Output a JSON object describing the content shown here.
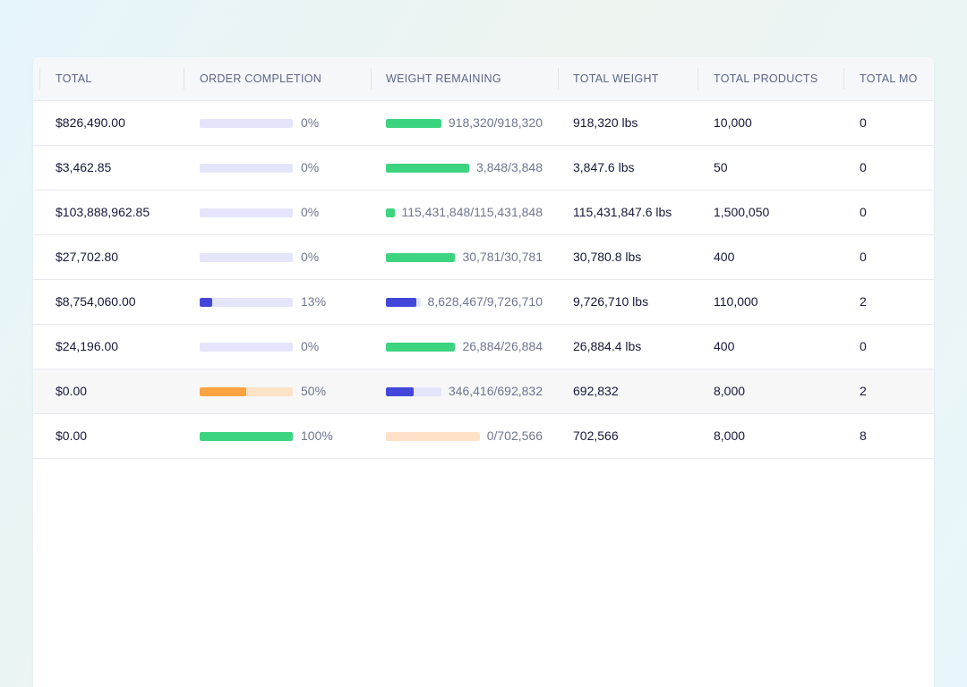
{
  "table": {
    "columns": [
      "TOTAL",
      "ORDER COMPLETION",
      "WEIGHT REMAINING",
      "TOTAL WEIGHT",
      "TOTAL PRODUCTS",
      "TOTAL MO"
    ],
    "rows": [
      {
        "total": "$826,490.00",
        "order_pct": "0%",
        "order_fraction": 0,
        "order_color": "#e4e5fb",
        "weight_text": "918,320/918,320",
        "weight_fraction": 1.0,
        "weight_color": "#3dd47f",
        "weight_track": "transparent",
        "total_weight": "918,320 lbs",
        "total_products": "10,000",
        "total_mo": "0"
      },
      {
        "total": "$3,462.85",
        "order_pct": "0%",
        "order_fraction": 0,
        "order_color": "#e4e5fb",
        "weight_text": "3,848/3,848",
        "weight_fraction": 1.0,
        "weight_color": "#3dd47f",
        "weight_track": "transparent",
        "total_weight": "3,847.6 lbs",
        "total_products": "50",
        "total_mo": "0"
      },
      {
        "total": "$103,888,962.85",
        "order_pct": "0%",
        "order_fraction": 0,
        "order_color": "#e4e5fb",
        "weight_text": "115,431,848/115,431,848",
        "weight_fraction": 1.0,
        "weight_color": "#3dd47f",
        "weight_track": "transparent",
        "total_weight": "115,431,847.6 lbs",
        "total_products": "1,500,050",
        "total_mo": "0"
      },
      {
        "total": "$27,702.80",
        "order_pct": "0%",
        "order_fraction": 0,
        "order_color": "#e4e5fb",
        "weight_text": "30,781/30,781",
        "weight_fraction": 1.0,
        "weight_color": "#3dd47f",
        "weight_track": "transparent",
        "total_weight": "30,780.8 lbs",
        "total_products": "400",
        "total_mo": "0"
      },
      {
        "total": "$8,754,060.00",
        "order_pct": "13%",
        "order_fraction": 0.13,
        "order_color": "#4347d9",
        "weight_text": "8,628,467/9,726,710",
        "weight_fraction": 0.887,
        "weight_color": "#4347d9",
        "weight_track": "#e4e5fb",
        "total_weight": "9,726,710 lbs",
        "total_products": "110,000",
        "total_mo": "2"
      },
      {
        "total": "$24,196.00",
        "order_pct": "0%",
        "order_fraction": 0,
        "order_color": "#e4e5fb",
        "weight_text": "26,884/26,884",
        "weight_fraction": 1.0,
        "weight_color": "#3dd47f",
        "weight_track": "transparent",
        "total_weight": "26,884.4 lbs",
        "total_products": "400",
        "total_mo": "0"
      },
      {
        "total": "$0.00",
        "order_pct": "50%",
        "order_fraction": 0.5,
        "order_color": "#fba343",
        "weight_text": "346,416/692,832",
        "weight_fraction": 0.5,
        "weight_color": "#4347d9",
        "weight_track": "#e4e5fb",
        "total_weight": "692,832",
        "total_products": "8,000",
        "total_mo": "2",
        "highlight": true
      },
      {
        "total": "$0.00",
        "order_pct": "100%",
        "order_fraction": 1.0,
        "order_color": "#3dd47f",
        "weight_text": "0/702,566",
        "weight_fraction": 0,
        "weight_color": "#fde2c7",
        "weight_track": "#fde2c7",
        "total_weight": "702,566",
        "total_products": "8,000",
        "total_mo": "8"
      }
    ]
  },
  "colors": {
    "order_track_default": "#e4e5fb",
    "order_track_orange": "#fde2c7",
    "green": "#3dd47f",
    "indigo": "#4347d9",
    "orange": "#fba343"
  }
}
